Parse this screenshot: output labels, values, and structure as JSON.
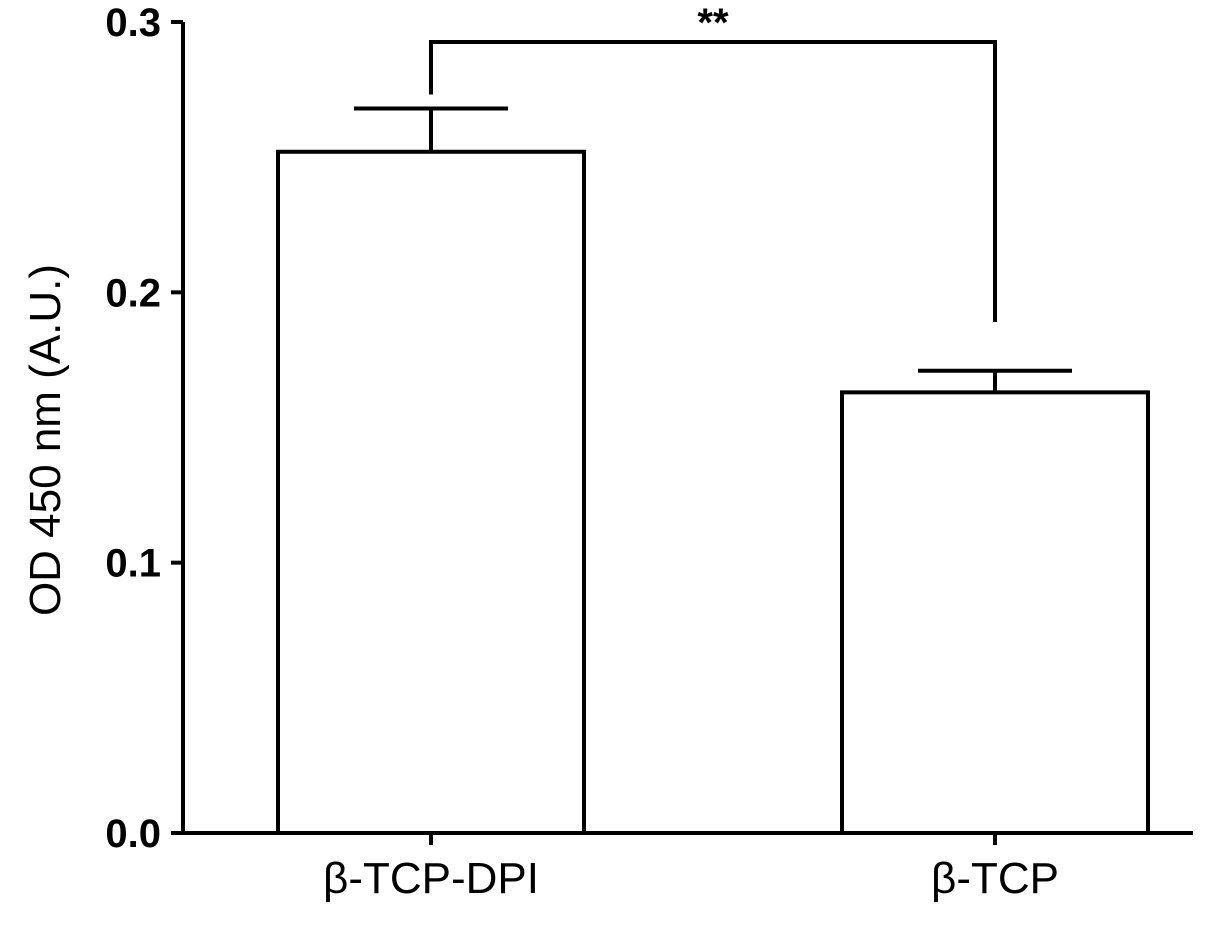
{
  "chart_data": {
    "type": "bar",
    "title": "",
    "xlabel": "",
    "ylabel": "OD 450 nm (A.U.)",
    "categories": [
      "β-TCP-DPI",
      "β-TCP"
    ],
    "values": [
      0.252,
      0.163
    ],
    "error": [
      0.016,
      0.008
    ],
    "ylim": [
      0,
      0.3
    ],
    "yticks": [
      0.0,
      0.1,
      0.2,
      0.3
    ],
    "ytick_labels": [
      "0.0",
      "0.1",
      "0.2",
      "0.3"
    ],
    "grid": false,
    "significance": {
      "between": [
        "β-TCP-DPI",
        "β-TCP"
      ],
      "label": "**"
    }
  }
}
